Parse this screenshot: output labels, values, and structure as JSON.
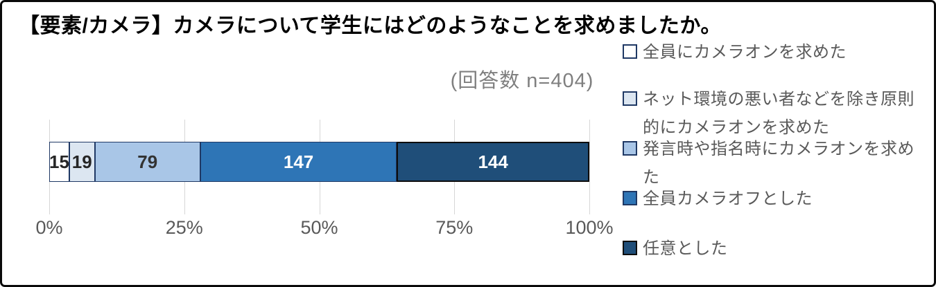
{
  "chart_data": {
    "type": "bar",
    "orientation": "horizontal-stacked",
    "title": "【要素/カメラ】カメラについて学生にはどのようなことを求めましたか。",
    "subtitle": "(回答数 n=404)",
    "total": 404,
    "xlim": [
      0,
      100
    ],
    "x_ticks": [
      "0%",
      "25%",
      "50%",
      "75%",
      "100%"
    ],
    "grid": true,
    "legend_position": "right",
    "series": [
      {
        "name": "全員にカメラオンを求めた",
        "value": 15,
        "fill": "#ffffff",
        "border": "#1f3864",
        "label_color": "#262626",
        "highlighted": false
      },
      {
        "name": "ネット環境の悪い者などを除き原則的にカメラオンを求めた",
        "value": 19,
        "fill": "#dce6f1",
        "border": "#1f3864",
        "label_color": "#262626",
        "highlighted": false
      },
      {
        "name": "発言時や指名時にカメラオンを求めた",
        "value": 79,
        "fill": "#a9c6e7",
        "border": "#1f3864",
        "label_color": "#333333",
        "highlighted": false
      },
      {
        "name": "全員カメラオフとした",
        "value": 147,
        "fill": "#2e75b6",
        "border": "#1f3864",
        "label_color": "#ffffff",
        "highlighted": false
      },
      {
        "name": "任意とした",
        "value": 144,
        "fill": "#1f4e79",
        "border": "#0d0d0d",
        "label_color": "#ffffff",
        "highlighted": true
      }
    ],
    "colors": {
      "grid": "#d6d6d6",
      "axis_text": "#595959",
      "legend_text": "#595959",
      "subtitle_text": "#7f7f7f",
      "title_text": "#000000",
      "panel_border": "#0a0a0a"
    }
  }
}
